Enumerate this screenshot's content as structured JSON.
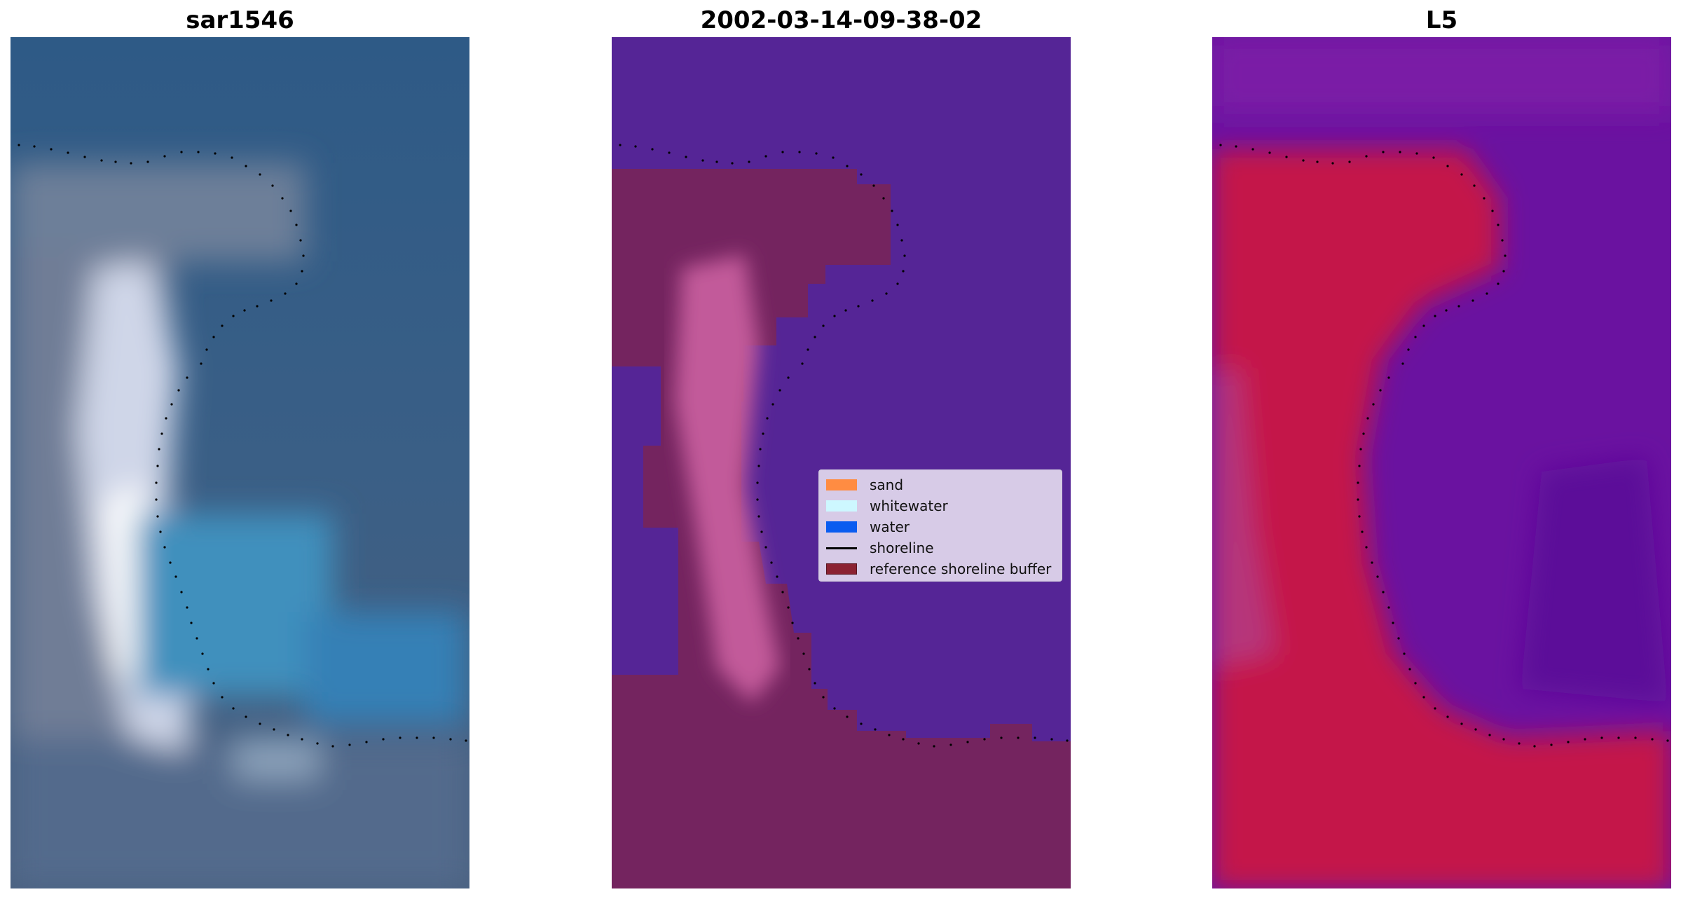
{
  "panels": [
    {
      "title": "sar1546",
      "kind": "rgb"
    },
    {
      "title": "2002-03-14-09-38-02",
      "kind": "classified"
    },
    {
      "title": "L5",
      "kind": "index"
    }
  ],
  "legend": {
    "items": [
      {
        "label": "sand",
        "color": "#ff8c42"
      },
      {
        "label": "whitewater",
        "color": "#cdf7ff"
      },
      {
        "label": "water",
        "color": "#0a5cf0"
      },
      {
        "label": "shoreline",
        "color": "#000000",
        "line": true
      },
      {
        "label": "reference shoreline buffer",
        "color": "#8b2232"
      }
    ]
  },
  "colors": {
    "rgb_water": "#3a5f86",
    "rgb_whitewater": "#e8eefa",
    "class_water": "#552596",
    "class_buffer": "#74245f",
    "index_land": "#c4174a",
    "index_water": "#6a12a0"
  }
}
